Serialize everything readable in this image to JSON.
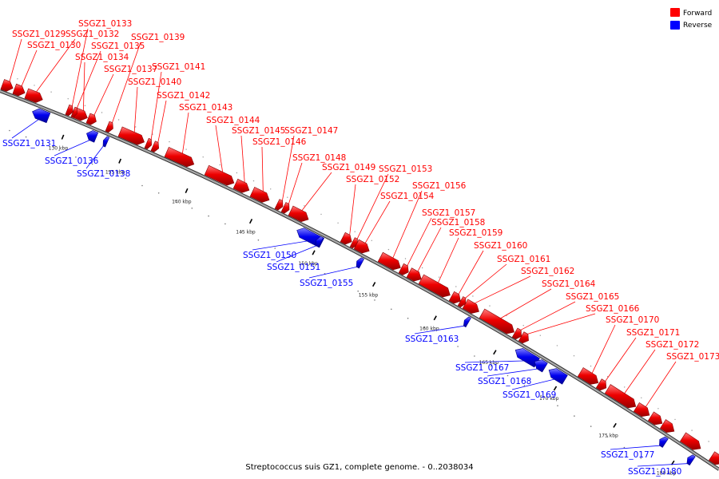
{
  "caption": "Streptococcus suis GZ1, complete genome. - 0..2038034",
  "legend": [
    {
      "label": "Forward",
      "color": "#ff0000"
    },
    {
      "label": "Reverse",
      "color": "#0000ff"
    }
  ],
  "colors": {
    "forward": "#ff0000",
    "reverse": "#0000ff",
    "backbone": "#aaaaaa",
    "backbone_edge": "#333333"
  },
  "ticks": [
    {
      "kbp": 130,
      "label": "130 kbp"
    },
    {
      "kbp": 135,
      "label": "135 kbp"
    },
    {
      "kbp": 140,
      "label": "140 kbp"
    },
    {
      "kbp": 145,
      "label": "145 kbp"
    },
    {
      "kbp": 150,
      "label": "150 kbp"
    },
    {
      "kbp": 155,
      "label": "155 kbp"
    },
    {
      "kbp": 160,
      "label": "160 kbp"
    },
    {
      "kbp": 165,
      "label": "165 kbp"
    },
    {
      "kbp": 170,
      "label": "170 kbp"
    },
    {
      "kbp": 175,
      "label": "175 kbp"
    },
    {
      "kbp": 180,
      "label": "180 kbp"
    }
  ],
  "genes": [
    {
      "id": "SSGZ1_0129",
      "strand": "forward"
    },
    {
      "id": "SSGZ1_0130",
      "strand": "forward"
    },
    {
      "id": "SSGZ1_0131",
      "strand": "reverse"
    },
    {
      "id": "SSGZ1_0132",
      "strand": "forward"
    },
    {
      "id": "SSGZ1_0133",
      "strand": "forward"
    },
    {
      "id": "SSGZ1_0134",
      "strand": "forward"
    },
    {
      "id": "SSGZ1_0135",
      "strand": "forward"
    },
    {
      "id": "SSGZ1_0136",
      "strand": "reverse"
    },
    {
      "id": "SSGZ1_0137",
      "strand": "forward"
    },
    {
      "id": "SSGZ1_0138",
      "strand": "reverse"
    },
    {
      "id": "SSGZ1_0139",
      "strand": "forward"
    },
    {
      "id": "SSGZ1_0140",
      "strand": "forward"
    },
    {
      "id": "SSGZ1_0141",
      "strand": "forward"
    },
    {
      "id": "SSGZ1_0142",
      "strand": "forward"
    },
    {
      "id": "SSGZ1_0143",
      "strand": "forward"
    },
    {
      "id": "SSGZ1_0144",
      "strand": "forward"
    },
    {
      "id": "SSGZ1_0145",
      "strand": "forward"
    },
    {
      "id": "SSGZ1_0146",
      "strand": "forward"
    },
    {
      "id": "SSGZ1_0147",
      "strand": "forward"
    },
    {
      "id": "SSGZ1_0148",
      "strand": "forward"
    },
    {
      "id": "SSGZ1_0149",
      "strand": "forward"
    },
    {
      "id": "SSGZ1_0150",
      "strand": "reverse"
    },
    {
      "id": "SSGZ1_0151",
      "strand": "reverse"
    },
    {
      "id": "SSGZ1_0152",
      "strand": "forward"
    },
    {
      "id": "SSGZ1_0153",
      "strand": "forward"
    },
    {
      "id": "SSGZ1_0154",
      "strand": "forward"
    },
    {
      "id": "SSGZ1_0155",
      "strand": "reverse"
    },
    {
      "id": "SSGZ1_0156",
      "strand": "forward"
    },
    {
      "id": "SSGZ1_0157",
      "strand": "forward"
    },
    {
      "id": "SSGZ1_0158",
      "strand": "forward"
    },
    {
      "id": "SSGZ1_0159",
      "strand": "forward"
    },
    {
      "id": "SSGZ1_0160",
      "strand": "forward"
    },
    {
      "id": "SSGZ1_0161",
      "strand": "forward"
    },
    {
      "id": "SSGZ1_0162",
      "strand": "forward"
    },
    {
      "id": "SSGZ1_0163",
      "strand": "reverse"
    },
    {
      "id": "SSGZ1_0164",
      "strand": "forward"
    },
    {
      "id": "SSGZ1_0165",
      "strand": "forward"
    },
    {
      "id": "SSGZ1_0166",
      "strand": "forward"
    },
    {
      "id": "SSGZ1_0167",
      "strand": "reverse"
    },
    {
      "id": "SSGZ1_0168",
      "strand": "reverse"
    },
    {
      "id": "SSGZ1_0169",
      "strand": "reverse"
    },
    {
      "id": "SSGZ1_0170",
      "strand": "forward"
    },
    {
      "id": "SSGZ1_0171",
      "strand": "forward"
    },
    {
      "id": "SSGZ1_0172",
      "strand": "forward"
    },
    {
      "id": "SSGZ1_0173",
      "strand": "forward"
    },
    {
      "id": "SSGZ1_0177",
      "strand": "reverse"
    },
    {
      "id": "SSGZ1_0180",
      "strand": "reverse"
    }
  ]
}
